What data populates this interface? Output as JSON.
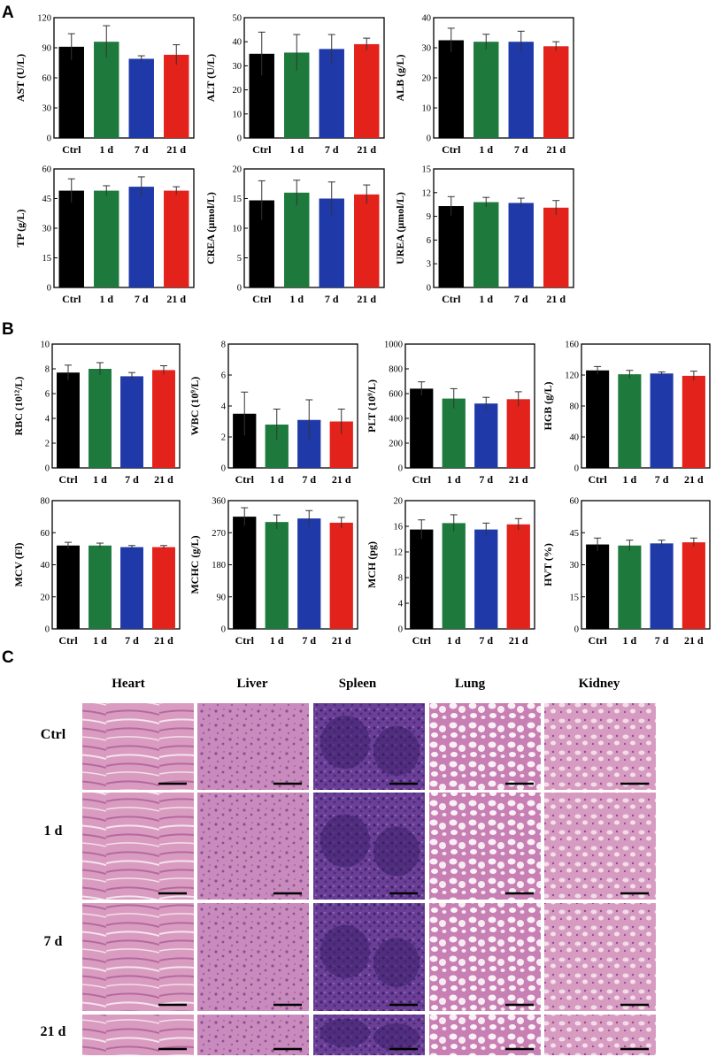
{
  "panels": {
    "a": "A",
    "b": "B",
    "c": "C"
  },
  "colors": [
    "#000000",
    "#1e7a3c",
    "#1f3aa8",
    "#e3221b"
  ],
  "chart_data": [
    {
      "type": "bar",
      "panel": "A",
      "ylabel": "AST (U/L)",
      "categories": [
        "Ctrl",
        "1 d",
        "7 d",
        "21 d"
      ],
      "values": [
        91,
        96,
        79,
        83
      ],
      "errors": [
        13,
        16,
        3,
        10
      ],
      "ylim": [
        0,
        120
      ],
      "yticks": [
        0,
        30,
        60,
        90,
        120
      ]
    },
    {
      "type": "bar",
      "panel": "A",
      "ylabel": "ALT (U/L)",
      "categories": [
        "Ctrl",
        "1 d",
        "7 d",
        "21 d"
      ],
      "values": [
        35,
        35.5,
        37,
        39
      ],
      "errors": [
        9,
        7.5,
        6,
        2.5
      ],
      "ylim": [
        0,
        50
      ],
      "yticks": [
        0,
        10,
        20,
        30,
        40,
        50
      ]
    },
    {
      "type": "bar",
      "panel": "A",
      "ylabel": "ALB (g/L)",
      "categories": [
        "Ctrl",
        "1 d",
        "7 d",
        "21 d"
      ],
      "values": [
        32.5,
        32,
        32,
        30.5
      ],
      "errors": [
        4,
        2.5,
        3.5,
        1.5
      ],
      "ylim": [
        0,
        40
      ],
      "yticks": [
        0,
        10,
        20,
        30,
        40
      ]
    },
    {
      "type": "bar",
      "panel": "A",
      "ylabel": "TP (g/L)",
      "categories": [
        "Ctrl",
        "1 d",
        "7 d",
        "21 d"
      ],
      "values": [
        49,
        49,
        51,
        49
      ],
      "errors": [
        6,
        2.5,
        5,
        2
      ],
      "ylim": [
        0,
        60
      ],
      "yticks": [
        0,
        15,
        30,
        45,
        60
      ]
    },
    {
      "type": "bar",
      "panel": "A",
      "ylabel": "CREA (μmol/L)",
      "categories": [
        "Ctrl",
        "1 d",
        "7 d",
        "21 d"
      ],
      "values": [
        14.7,
        16,
        15,
        15.7
      ],
      "errors": [
        3.3,
        2.1,
        2.8,
        1.6
      ],
      "ylim": [
        0,
        20
      ],
      "yticks": [
        0,
        5,
        10,
        15,
        20
      ]
    },
    {
      "type": "bar",
      "panel": "A",
      "ylabel": "UREA (μmol/L)",
      "categories": [
        "Ctrl",
        "1 d",
        "7 d",
        "21 d"
      ],
      "values": [
        10.3,
        10.8,
        10.7,
        10.1
      ],
      "errors": [
        1.2,
        0.6,
        0.6,
        0.9
      ],
      "ylim": [
        0,
        15
      ],
      "yticks": [
        0,
        3,
        6,
        9,
        12,
        15
      ]
    },
    {
      "type": "bar",
      "panel": "B",
      "ylabel": "RBC (10¹²/L)",
      "categories": [
        "Ctrl",
        "1 d",
        "7 d",
        "21 d"
      ],
      "values": [
        7.7,
        8,
        7.4,
        7.9
      ],
      "errors": [
        0.6,
        0.5,
        0.3,
        0.35
      ],
      "ylim": [
        0,
        10
      ],
      "yticks": [
        0,
        2,
        4,
        6,
        8,
        10
      ]
    },
    {
      "type": "bar",
      "panel": "B",
      "ylabel": "WBC (10⁹/L)",
      "categories": [
        "Ctrl",
        "1 d",
        "7 d",
        "21 d"
      ],
      "values": [
        3.5,
        2.8,
        3.1,
        3
      ],
      "errors": [
        1.4,
        1,
        1.3,
        0.8
      ],
      "ylim": [
        0,
        8
      ],
      "yticks": [
        0,
        2,
        4,
        6,
        8
      ]
    },
    {
      "type": "bar",
      "panel": "B",
      "ylabel": "PLT (10⁹/L)",
      "categories": [
        "Ctrl",
        "1 d",
        "7 d",
        "21 d"
      ],
      "values": [
        640,
        560,
        520,
        555
      ],
      "errors": [
        55,
        80,
        50,
        60
      ],
      "ylim": [
        0,
        1000
      ],
      "yticks": [
        0,
        200,
        400,
        600,
        800,
        1000
      ]
    },
    {
      "type": "bar",
      "panel": "B",
      "ylabel": "HGB (g/L)",
      "categories": [
        "Ctrl",
        "1 d",
        "7 d",
        "21 d"
      ],
      "values": [
        126,
        121,
        122,
        119
      ],
      "errors": [
        5,
        5,
        2,
        6
      ],
      "ylim": [
        0,
        160
      ],
      "yticks": [
        0,
        40,
        80,
        120,
        160
      ]
    },
    {
      "type": "bar",
      "panel": "B",
      "ylabel": "MCV (Fl)",
      "categories": [
        "Ctrl",
        "1 d",
        "7 d",
        "21 d"
      ],
      "values": [
        52,
        52,
        51,
        51
      ],
      "errors": [
        2,
        1.5,
        1,
        1
      ],
      "ylim": [
        0,
        80
      ],
      "yticks": [
        0,
        20,
        40,
        60,
        80
      ]
    },
    {
      "type": "bar",
      "panel": "B",
      "ylabel": "MCHC (g/L)",
      "categories": [
        "Ctrl",
        "1 d",
        "7 d",
        "21 d"
      ],
      "values": [
        315,
        300,
        310,
        298
      ],
      "errors": [
        25,
        20,
        22,
        15
      ],
      "ylim": [
        0,
        360
      ],
      "yticks": [
        0,
        90,
        180,
        270,
        360
      ]
    },
    {
      "type": "bar",
      "panel": "B",
      "ylabel": "MCH (pg)",
      "categories": [
        "Ctrl",
        "1 d",
        "7 d",
        "21 d"
      ],
      "values": [
        15.5,
        16.5,
        15.5,
        16.3
      ],
      "errors": [
        1.5,
        1.3,
        1,
        0.9
      ],
      "ylim": [
        0,
        20
      ],
      "yticks": [
        0,
        4,
        8,
        12,
        16,
        20
      ]
    },
    {
      "type": "bar",
      "panel": "B",
      "ylabel": "HVT (%)",
      "categories": [
        "Ctrl",
        "1 d",
        "7 d",
        "21 d"
      ],
      "values": [
        39.5,
        39,
        40,
        40.5
      ],
      "errors": [
        3,
        2.5,
        1.5,
        2
      ],
      "ylim": [
        0,
        60
      ],
      "yticks": [
        0,
        15,
        30,
        45,
        60
      ]
    }
  ],
  "histology": {
    "columns": [
      "Heart",
      "Liver",
      "Spleen",
      "Lung",
      "Kidney"
    ],
    "rows": [
      "Ctrl",
      "1 d",
      "7 d",
      "21 d"
    ]
  }
}
